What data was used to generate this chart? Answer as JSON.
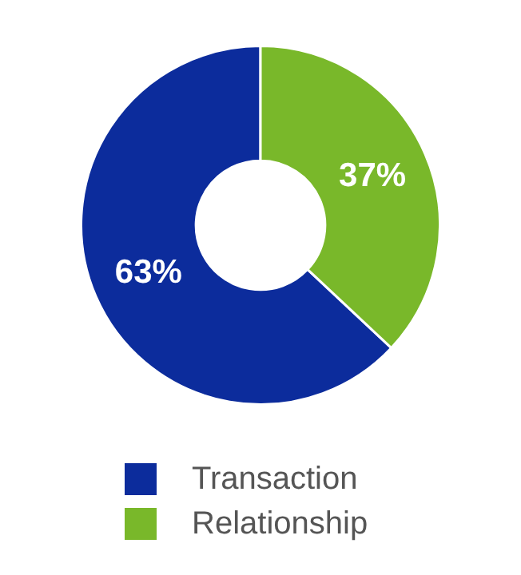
{
  "chart_data": {
    "type": "donut",
    "categories": [
      "Transaction",
      "Relationship"
    ],
    "values": [
      63,
      37
    ],
    "colors": [
      "#0c2c9c",
      "#79b82a"
    ],
    "legend": "bottom",
    "value_labels": [
      "63%",
      "37%"
    ]
  }
}
